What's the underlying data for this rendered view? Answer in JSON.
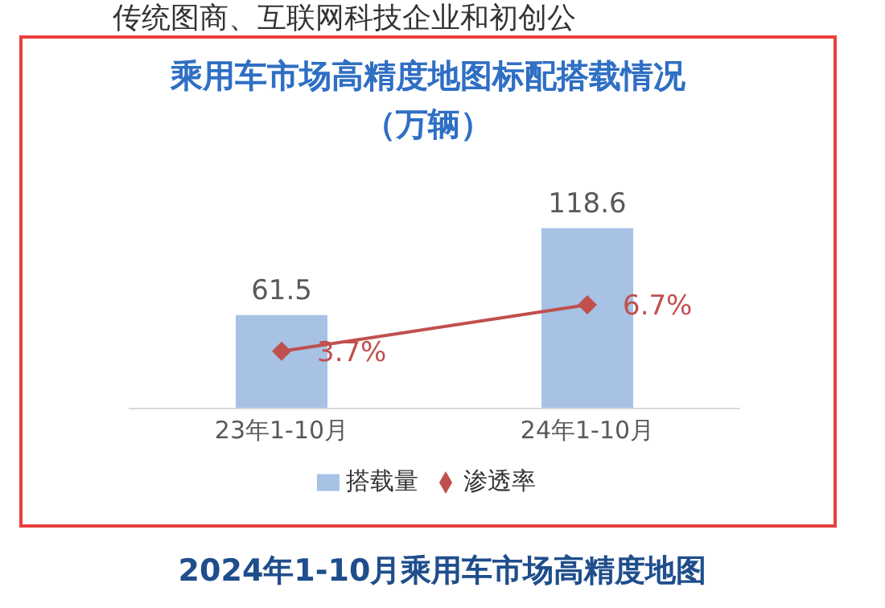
{
  "chart_data": {
    "type": "bar",
    "title": "乘用车市场高精度地图标配搭载情况（万辆）",
    "categories": [
      "23年1-10月",
      "24年1-10月"
    ],
    "series": [
      {
        "name": "搭载量",
        "color": "#a7c2e5",
        "values": [
          61.5,
          118.6
        ],
        "value_labels": [
          "61.5",
          "118.6"
        ]
      },
      {
        "name": "渗透率",
        "type": "line",
        "axis": "y2",
        "color": "#c0504d",
        "values": [
          3.7,
          6.7
        ],
        "value_labels": [
          "3.7%",
          "6.7%"
        ]
      }
    ],
    "tick_labels": "x",
    "legend": "bottom",
    "marker": "diamond",
    "line_style": "solid",
    "grid": false,
    "annotations": [
      "传统图商、互联网科技企业和初创公",
      "2024年1-10月乘用车市场高精度地图"
    ]
  }
}
